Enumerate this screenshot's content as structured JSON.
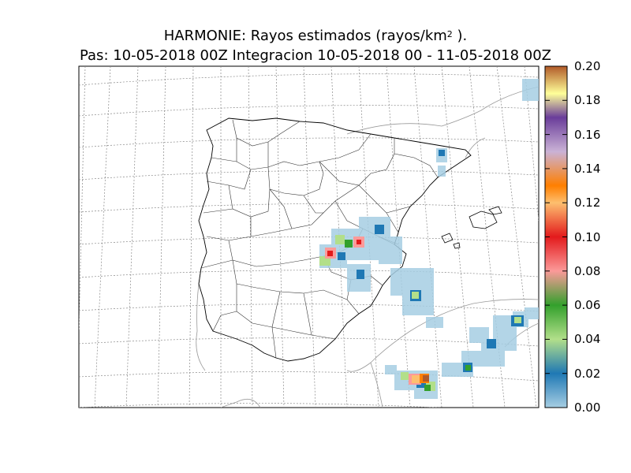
{
  "title": {
    "line1_prefix": "HARMONIE: Rayos estimados  (rayos/km",
    "line1_sup": "2",
    "line1_suffix": " ).",
    "line2": "Pas: 10-05-2018 00Z Integracion 10-05-2018 00 - 11-05-2018 00Z"
  },
  "colorbar": {
    "ticks": [
      "0.20",
      "0.18",
      "0.16",
      "0.14",
      "0.12",
      "0.10",
      "0.08",
      "0.06",
      "0.04",
      "0.02",
      "0.00"
    ],
    "min": 0.0,
    "max": 0.2,
    "stops": [
      {
        "v": 0.0,
        "color": "#a6cee3"
      },
      {
        "v": 0.02,
        "color": "#1f78b4"
      },
      {
        "v": 0.04,
        "color": "#b2df8a"
      },
      {
        "v": 0.06,
        "color": "#33a02c"
      },
      {
        "v": 0.08,
        "color": "#fb9a99"
      },
      {
        "v": 0.1,
        "color": "#e31a1c"
      },
      {
        "v": 0.12,
        "color": "#fdbf6f"
      },
      {
        "v": 0.13,
        "color": "#ff7f00"
      },
      {
        "v": 0.15,
        "color": "#cab2d6"
      },
      {
        "v": 0.17,
        "color": "#6a3d9a"
      },
      {
        "v": 0.18,
        "color": "#ffff99"
      },
      {
        "v": 0.2,
        "color": "#b15928"
      }
    ]
  },
  "map": {
    "region": "Iberian Peninsula and western Mediterranean",
    "grid": "dotted lat/lon graticule",
    "colors": {
      "coast": "#000000",
      "provinces": "#333333",
      "borders": "#888888",
      "grid": "#888888"
    }
  }
}
